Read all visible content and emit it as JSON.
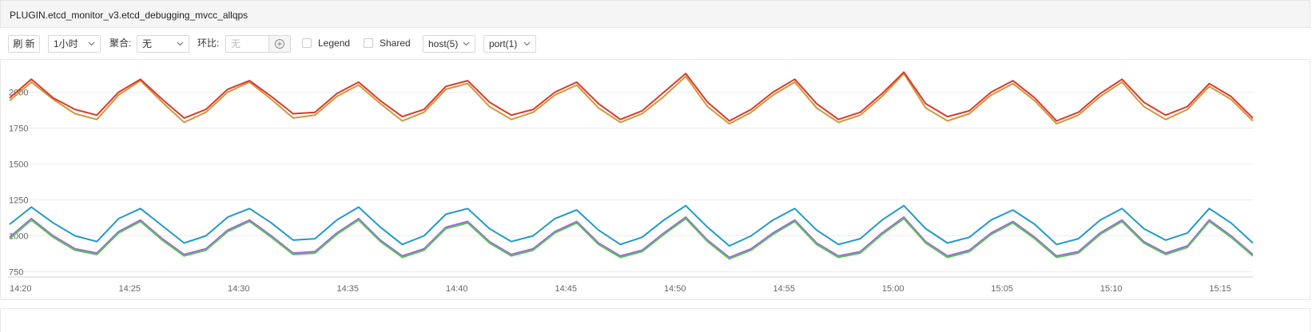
{
  "header": {
    "title": "PLUGIN.etcd_monitor_v3.etcd_debugging_mvcc_allqps"
  },
  "toolbar": {
    "refresh": "刷 新",
    "range": "1小时",
    "agg_label": "聚合:",
    "agg_value": "无",
    "compare_label": "环比:",
    "compare_placeholder": "无",
    "legend": "Legend",
    "shared": "Shared",
    "host": "host(5)",
    "port": "port(1)"
  },
  "chart_data": {
    "type": "line",
    "categories": [
      "14:20",
      null,
      null,
      null,
      null,
      "14:25",
      null,
      null,
      null,
      null,
      "14:30",
      null,
      null,
      null,
      null,
      "14:35",
      null,
      null,
      null,
      null,
      "14:40",
      null,
      null,
      null,
      null,
      "14:45",
      null,
      null,
      null,
      null,
      "14:50",
      null,
      null,
      null,
      null,
      "14:55",
      null,
      null,
      null,
      null,
      "15:00",
      null,
      null,
      null,
      null,
      "15:05",
      null,
      null,
      null,
      null,
      "15:10",
      null,
      null,
      null,
      null,
      "15:15",
      null,
      null
    ],
    "ylim": [
      725,
      2175
    ],
    "yticks": [
      750,
      1000,
      1250,
      1500,
      1750,
      2000
    ],
    "grid": true,
    "series": [
      {
        "color": "#d4963a",
        "values": [
          1940,
          2070,
          1950,
          1850,
          1810,
          1980,
          2080,
          1930,
          1790,
          1860,
          2000,
          2070,
          1950,
          1820,
          1840,
          1970,
          2050,
          1920,
          1800,
          1860,
          2020,
          2060,
          1900,
          1810,
          1860,
          1980,
          2050,
          1890,
          1790,
          1850,
          1970,
          2110,
          1900,
          1780,
          1860,
          1980,
          2070,
          1890,
          1790,
          1840,
          1970,
          2130,
          1890,
          1800,
          1850,
          1980,
          2060,
          1940,
          1780,
          1840,
          1970,
          2070,
          1900,
          1810,
          1880,
          2040,
          1950,
          1800
        ]
      },
      {
        "color": "#d93a2b",
        "values": [
          1960,
          2090,
          1960,
          1880,
          1840,
          2000,
          2090,
          1950,
          1820,
          1880,
          2020,
          2080,
          1970,
          1850,
          1860,
          1990,
          2070,
          1940,
          1830,
          1880,
          2040,
          2080,
          1930,
          1840,
          1880,
          2000,
          2070,
          1920,
          1810,
          1870,
          2000,
          2130,
          1930,
          1800,
          1880,
          2000,
          2090,
          1920,
          1810,
          1860,
          1990,
          2140,
          1920,
          1830,
          1870,
          2000,
          2080,
          1960,
          1800,
          1860,
          1990,
          2090,
          1930,
          1840,
          1900,
          2060,
          1970,
          1820
        ]
      },
      {
        "color": "#1f9ac9",
        "values": [
          1080,
          1200,
          1090,
          1000,
          960,
          1120,
          1190,
          1070,
          950,
          1000,
          1130,
          1190,
          1090,
          970,
          980,
          1110,
          1200,
          1060,
          940,
          1000,
          1150,
          1190,
          1050,
          960,
          1000,
          1120,
          1180,
          1040,
          940,
          990,
          1110,
          1210,
          1060,
          930,
          1000,
          1110,
          1190,
          1040,
          940,
          980,
          1110,
          1210,
          1050,
          950,
          990,
          1110,
          1180,
          1080,
          940,
          980,
          1110,
          1190,
          1050,
          970,
          1020,
          1190,
          1090,
          950
        ]
      },
      {
        "color": "#a066e0",
        "values": [
          990,
          1120,
          1000,
          910,
          880,
          1030,
          1110,
          980,
          870,
          910,
          1040,
          1110,
          1000,
          880,
          890,
          1020,
          1120,
          970,
          860,
          910,
          1060,
          1100,
          960,
          870,
          910,
          1030,
          1100,
          950,
          860,
          900,
          1020,
          1130,
          970,
          850,
          910,
          1020,
          1110,
          950,
          860,
          890,
          1020,
          1130,
          960,
          860,
          900,
          1020,
          1100,
          990,
          860,
          890,
          1020,
          1110,
          960,
          880,
          930,
          1110,
          1000,
          870
        ]
      },
      {
        "color": "#5cbf5c",
        "values": [
          980,
          1110,
          990,
          900,
          870,
          1020,
          1100,
          970,
          860,
          900,
          1030,
          1100,
          990,
          870,
          880,
          1010,
          1110,
          960,
          850,
          900,
          1050,
          1090,
          950,
          860,
          900,
          1020,
          1090,
          940,
          850,
          890,
          1010,
          1120,
          960,
          840,
          900,
          1010,
          1100,
          940,
          850,
          880,
          1010,
          1120,
          950,
          850,
          890,
          1010,
          1090,
          980,
          850,
          880,
          1010,
          1100,
          950,
          870,
          920,
          1100,
          990,
          860
        ]
      }
    ]
  }
}
